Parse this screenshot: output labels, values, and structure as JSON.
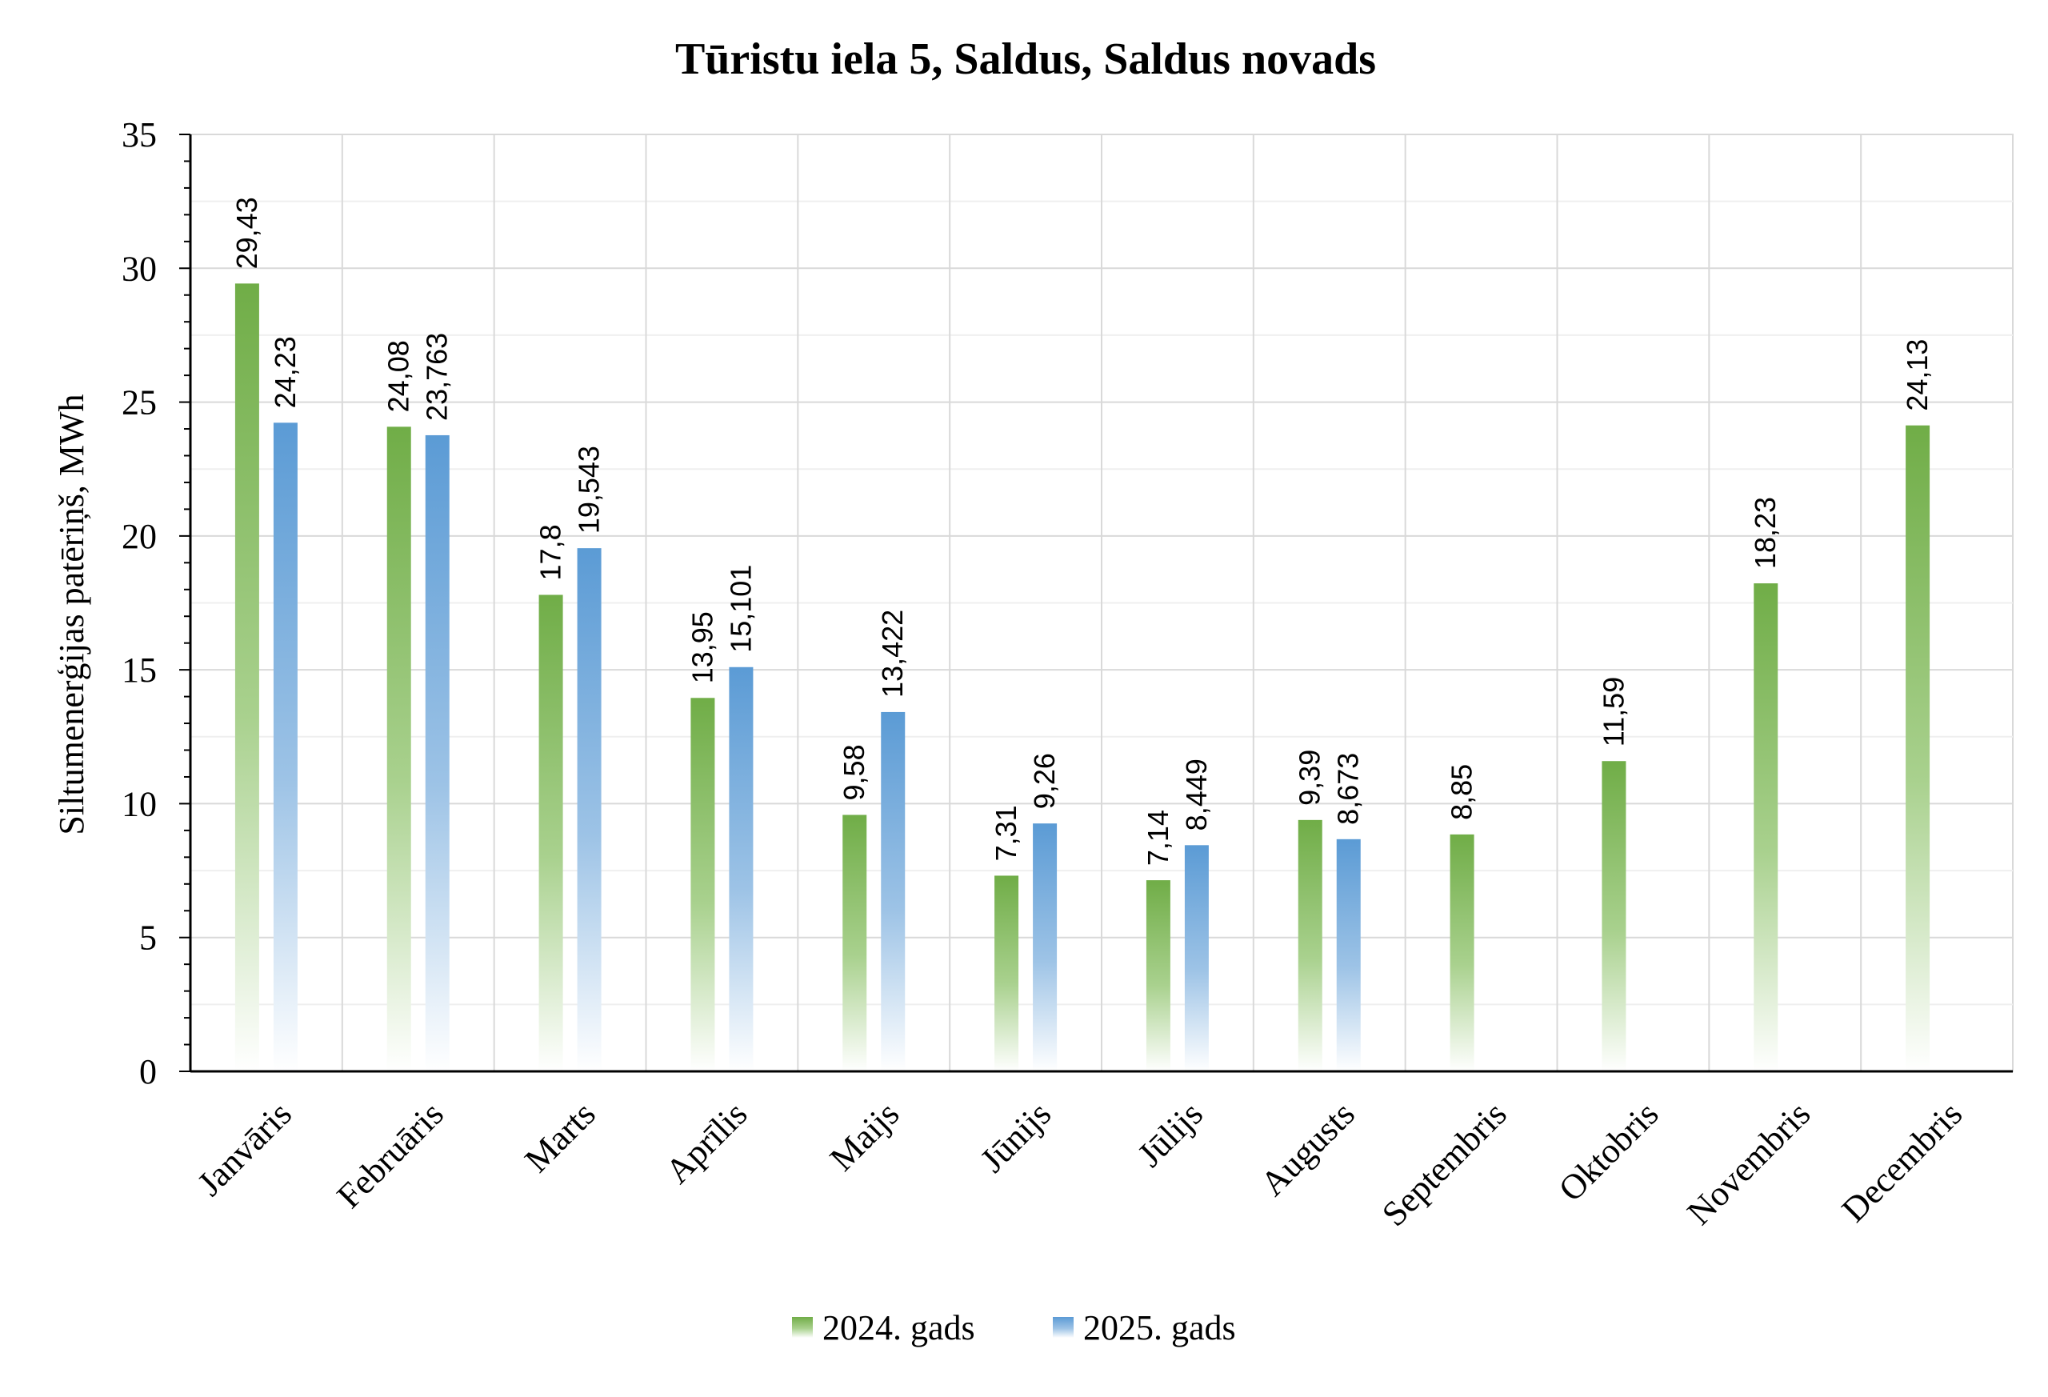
{
  "chart_data": {
    "type": "bar",
    "title": "Tūristu iela 5, Saldus, Saldus novads",
    "xlabel": "",
    "ylabel": "Siltumenerģijas patēriņš, MWh",
    "ylim": [
      0,
      35
    ],
    "yticks": [
      "0",
      "5",
      "10",
      "15",
      "20",
      "25",
      "30",
      "35"
    ],
    "grid": true,
    "legend_position": "bottom",
    "categories": [
      "Janvāris",
      "Februāris",
      "Marts",
      "Aprīlis",
      "Maijs",
      "Jūnijs",
      "Jūlijs",
      "Augusts",
      "Septembris",
      "Oktobris",
      "Novembris",
      "Decembris"
    ],
    "series": [
      {
        "name": "2024. gads",
        "color": "#70ad47",
        "values": [
          29.43,
          24.08,
          17.8,
          13.95,
          9.58,
          7.31,
          7.14,
          9.39,
          8.85,
          11.59,
          18.23,
          24.13
        ],
        "labels": [
          "29,43",
          "24,08",
          "17,8",
          "13,95",
          "9,58",
          "7,31",
          "7,14",
          "9,39",
          "8,85",
          "11,59",
          "18,23",
          "24,13"
        ]
      },
      {
        "name": "2025. gads",
        "color": "#5b9bd5",
        "values": [
          24.23,
          23.763,
          19.543,
          15.101,
          13.422,
          9.26,
          8.449,
          8.673,
          null,
          null,
          null,
          null
        ],
        "labels": [
          "24,23",
          "23,763",
          "19,543",
          "15,101",
          "13,422",
          "9,26",
          "8,449",
          "8,673",
          null,
          null,
          null,
          null
        ]
      }
    ]
  }
}
